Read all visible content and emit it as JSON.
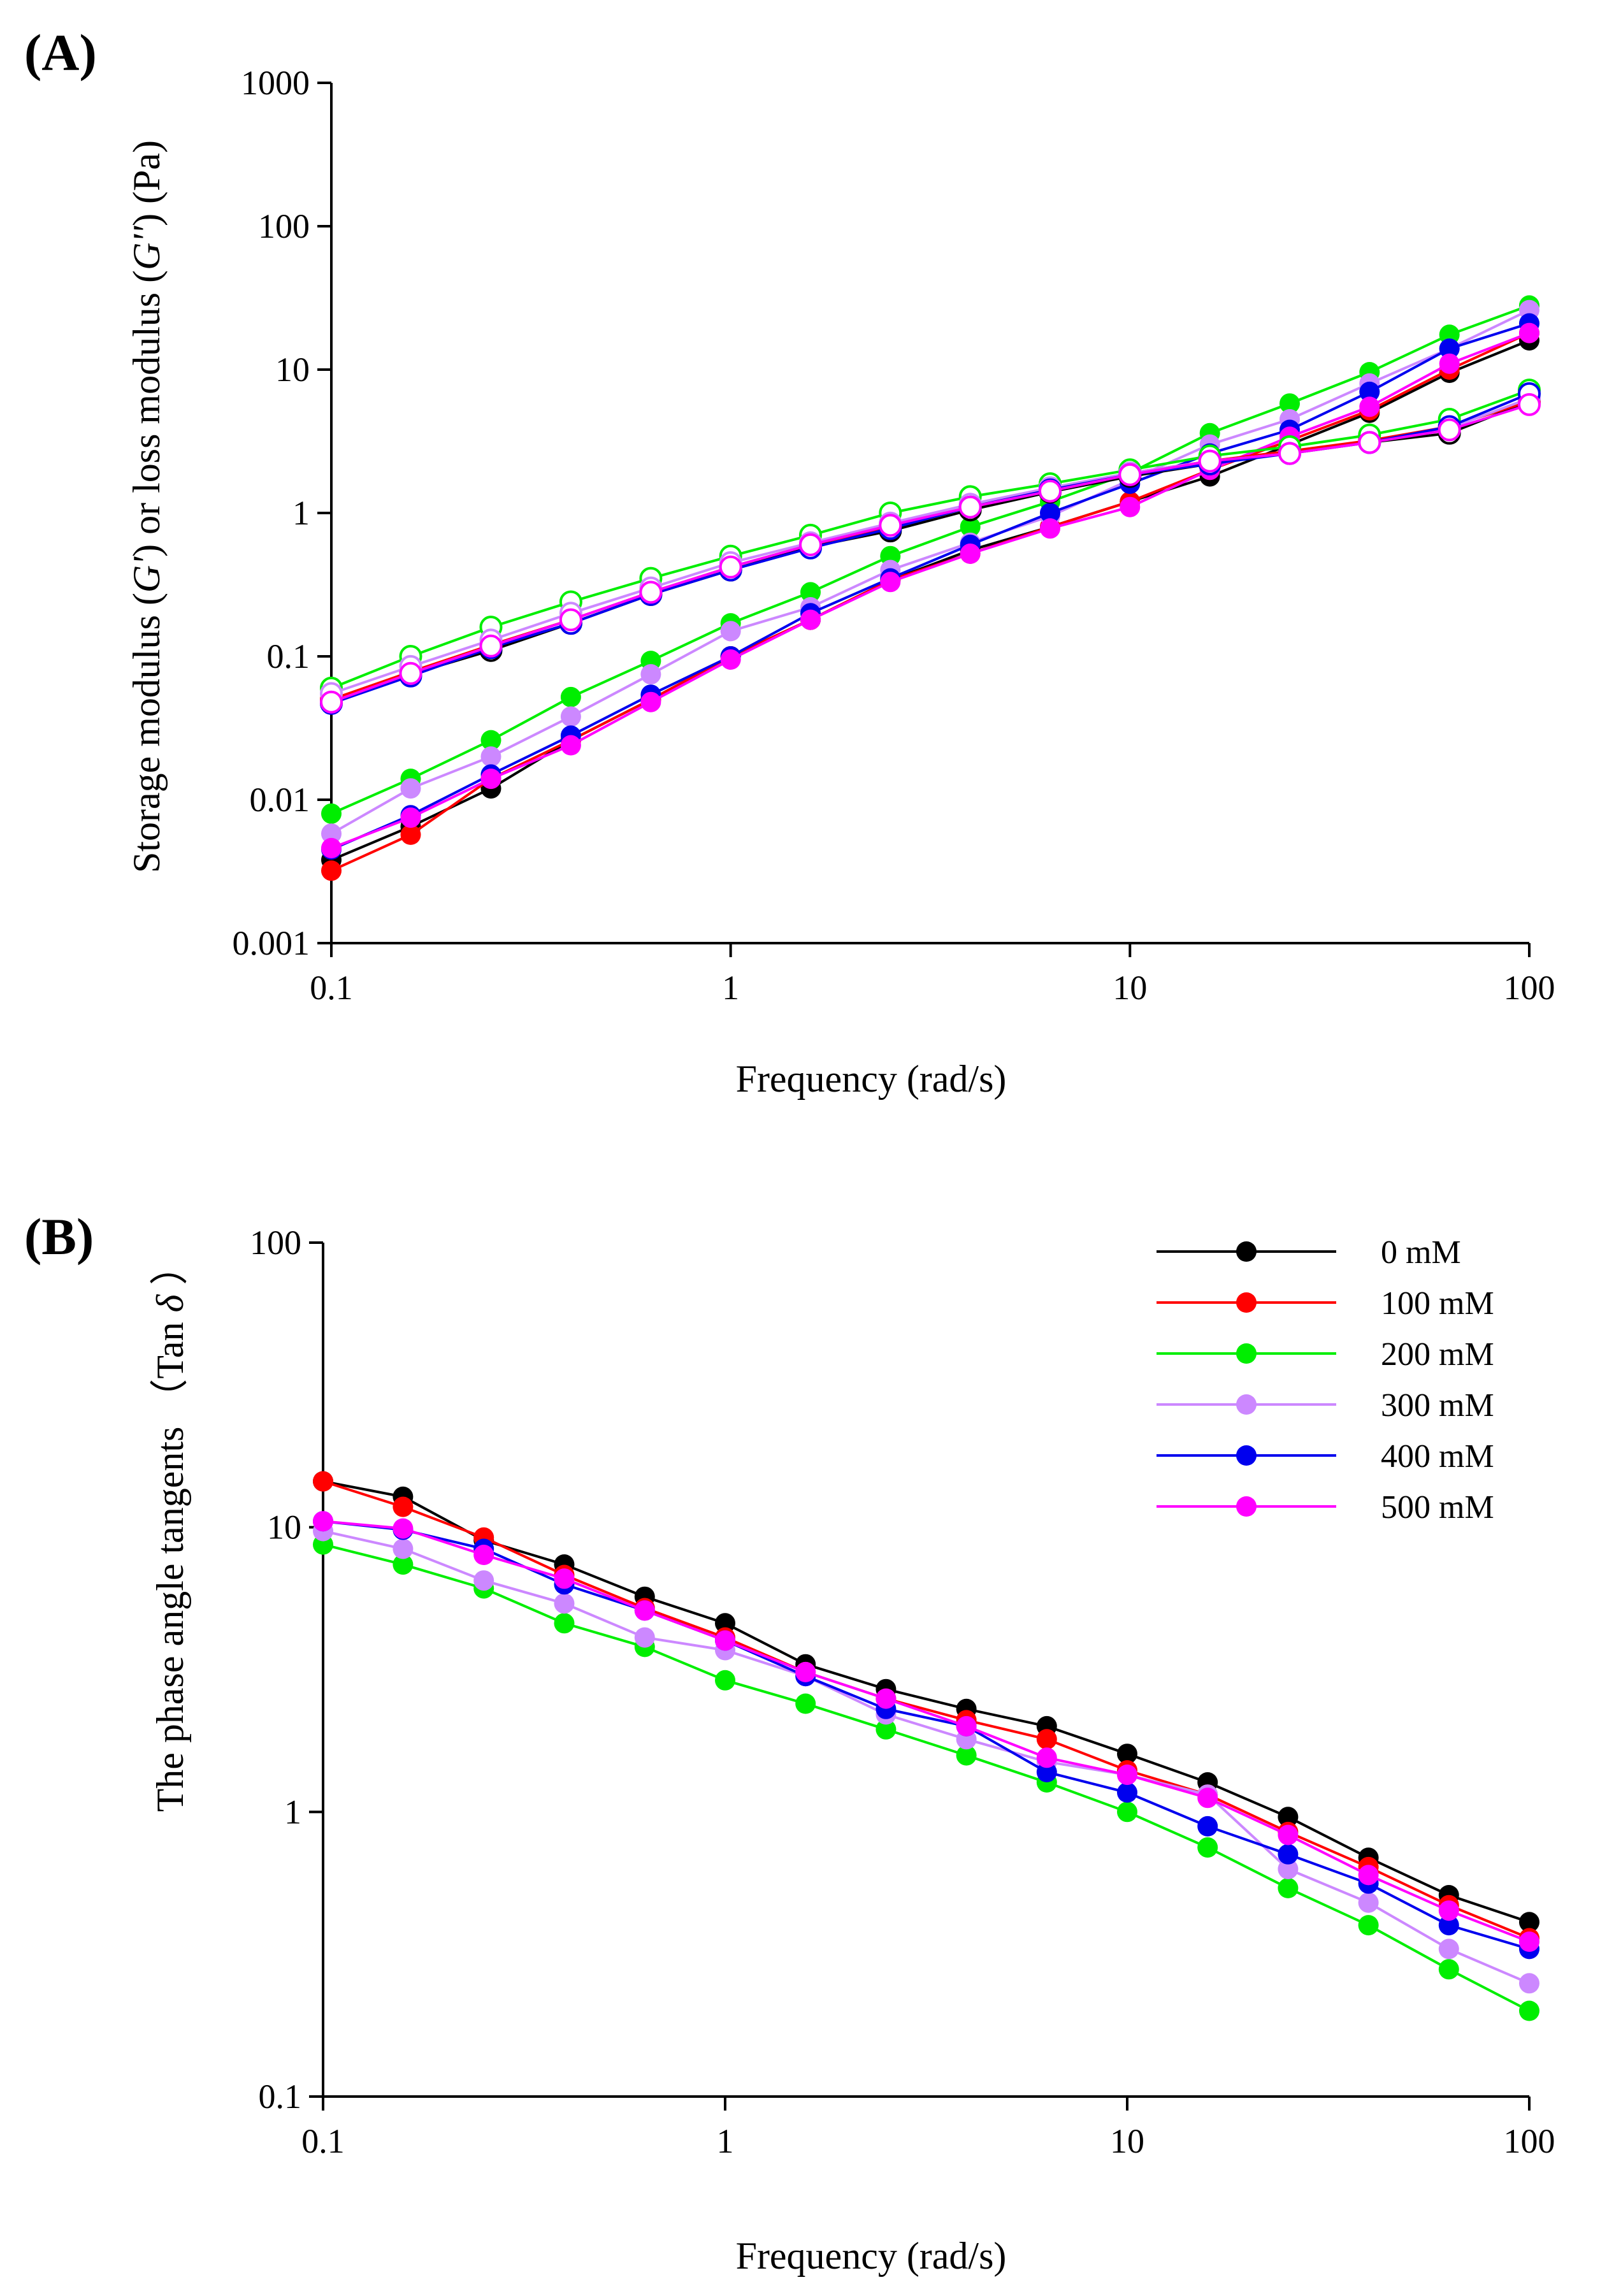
{
  "chart_data": [
    {
      "type": "line",
      "panel_label": "(A)",
      "xlabel": "Frequency (rad/s)",
      "ylabel_parts": [
        "Storage modulus (",
        "G'",
        ") or loss modulus (",
        "G''",
        ") (Pa)"
      ],
      "xscale": "log",
      "yscale": "log",
      "xlim": [
        0.1,
        100
      ],
      "ylim": [
        0.001,
        1000
      ],
      "x_ticks": [
        "0.1",
        "1",
        "10",
        "100"
      ],
      "y_ticks": [
        "0.001",
        "0.01",
        "0.1",
        "1",
        "10",
        "100",
        "1000"
      ],
      "x": [
        0.1,
        0.158,
        0.251,
        0.398,
        0.631,
        1,
        1.585,
        2.512,
        3.981,
        6.31,
        10,
        15.85,
        25.12,
        39.81,
        63.1,
        100
      ],
      "series": [
        {
          "name": "0 mM G'",
          "color": "#000000",
          "marker": "filled",
          "values": [
            0.0038,
            0.0065,
            0.012,
            0.026,
            0.05,
            0.1,
            0.18,
            0.34,
            0.55,
            0.8,
            1.2,
            1.8,
            3.0,
            5.0,
            9.5,
            16
          ]
        },
        {
          "name": "100 mM G'",
          "color": "#ff0000",
          "marker": "filled",
          "values": [
            0.0032,
            0.0057,
            0.014,
            0.026,
            0.05,
            0.1,
            0.18,
            0.34,
            0.52,
            0.8,
            1.2,
            2.0,
            3.2,
            5.2,
            10,
            18
          ]
        },
        {
          "name": "200 mM G'",
          "color": "#00ee00",
          "marker": "filled",
          "values": [
            0.008,
            0.014,
            0.026,
            0.052,
            0.093,
            0.17,
            0.28,
            0.5,
            0.8,
            1.2,
            1.9,
            3.6,
            5.8,
            9.6,
            17.5,
            28
          ]
        },
        {
          "name": "300 mM G'",
          "color": "#cc88ff",
          "marker": "filled",
          "values": [
            0.0058,
            0.012,
            0.02,
            0.038,
            0.075,
            0.15,
            0.22,
            0.4,
            0.62,
            0.95,
            1.7,
            3.0,
            4.5,
            8.0,
            14,
            26
          ]
        },
        {
          "name": "400 mM G'",
          "color": "#0000ee",
          "marker": "filled",
          "values": [
            0.0045,
            0.0078,
            0.015,
            0.028,
            0.054,
            0.1,
            0.2,
            0.35,
            0.6,
            1.0,
            1.6,
            2.6,
            3.8,
            7.0,
            14,
            21
          ]
        },
        {
          "name": "500 mM G'",
          "color": "#ff00ff",
          "marker": "filled",
          "values": [
            0.0046,
            0.0075,
            0.014,
            0.024,
            0.048,
            0.095,
            0.18,
            0.33,
            0.52,
            0.78,
            1.1,
            2.0,
            3.4,
            5.5,
            11,
            18
          ]
        },
        {
          "name": "0 mM G''",
          "color": "#000000",
          "marker": "open",
          "values": [
            0.048,
            0.075,
            0.11,
            0.17,
            0.27,
            0.4,
            0.58,
            0.75,
            1.05,
            1.4,
            1.8,
            2.2,
            2.7,
            3.1,
            3.6,
            6.0
          ]
        },
        {
          "name": "100 mM G''",
          "color": "#ff0000",
          "marker": "open",
          "values": [
            0.05,
            0.078,
            0.12,
            0.18,
            0.28,
            0.42,
            0.6,
            0.8,
            1.1,
            1.45,
            1.9,
            2.3,
            2.7,
            3.2,
            4.0,
            6.0
          ]
        },
        {
          "name": "200 mM G''",
          "color": "#00ee00",
          "marker": "open",
          "values": [
            0.06,
            0.1,
            0.16,
            0.24,
            0.35,
            0.5,
            0.7,
            1.0,
            1.3,
            1.6,
            2.0,
            2.5,
            2.9,
            3.5,
            4.5,
            7.2
          ]
        },
        {
          "name": "300 mM G''",
          "color": "#cc88ff",
          "marker": "open",
          "values": [
            0.055,
            0.085,
            0.13,
            0.2,
            0.3,
            0.45,
            0.62,
            0.85,
            1.15,
            1.5,
            1.9,
            2.3,
            2.6,
            3.1,
            3.9,
            6.3
          ]
        },
        {
          "name": "400 mM G''",
          "color": "#0000ee",
          "marker": "open",
          "values": [
            0.047,
            0.073,
            0.115,
            0.17,
            0.27,
            0.4,
            0.57,
            0.78,
            1.1,
            1.45,
            1.85,
            2.2,
            2.6,
            3.1,
            4.0,
            6.8
          ]
        },
        {
          "name": "500 mM G''",
          "color": "#ff00ff",
          "marker": "open",
          "values": [
            0.048,
            0.076,
            0.118,
            0.18,
            0.28,
            0.42,
            0.6,
            0.82,
            1.1,
            1.42,
            1.85,
            2.3,
            2.6,
            3.1,
            3.8,
            5.7
          ]
        }
      ]
    },
    {
      "type": "line",
      "panel_label": "(B)",
      "xlabel": "Frequency (rad/s)",
      "ylabel_parts": [
        "The phase angle tangents  （Tan ",
        "δ",
        " ）"
      ],
      "xscale": "log",
      "yscale": "log",
      "xlim": [
        0.1,
        100
      ],
      "ylim": [
        0.1,
        100
      ],
      "x_ticks": [
        "0.1",
        "1",
        "10",
        "100"
      ],
      "y_ticks": [
        "0.1",
        "1",
        "10",
        "100"
      ],
      "legend": "top-right",
      "x": [
        0.1,
        0.158,
        0.251,
        0.398,
        0.631,
        1,
        1.585,
        2.512,
        3.981,
        6.31,
        10,
        15.85,
        25.12,
        39.81,
        63.1,
        100
      ],
      "series": [
        {
          "name": "0 mM",
          "color": "#000000",
          "values": [
            14.5,
            12.8,
            9.0,
            7.4,
            5.7,
            4.6,
            3.3,
            2.7,
            2.3,
            2.0,
            1.6,
            1.27,
            0.96,
            0.69,
            0.51,
            0.41
          ]
        },
        {
          "name": "100 mM",
          "color": "#ff0000",
          "values": [
            14.5,
            11.8,
            9.2,
            6.8,
            5.2,
            4.1,
            3.1,
            2.5,
            2.1,
            1.8,
            1.4,
            1.15,
            0.85,
            0.64,
            0.47,
            0.36
          ]
        },
        {
          "name": "200 mM",
          "color": "#00ee00",
          "values": [
            8.7,
            7.4,
            6.1,
            4.6,
            3.8,
            2.9,
            2.4,
            1.95,
            1.58,
            1.27,
            1.0,
            0.75,
            0.54,
            0.4,
            0.28,
            0.2
          ]
        },
        {
          "name": "300 mM",
          "color": "#cc88ff",
          "values": [
            9.7,
            8.4,
            6.5,
            5.4,
            4.1,
            3.7,
            3.0,
            2.2,
            1.8,
            1.5,
            1.35,
            1.15,
            0.63,
            0.48,
            0.33,
            0.25
          ]
        },
        {
          "name": "400 mM",
          "color": "#0000ee",
          "values": [
            10.5,
            9.8,
            8.4,
            6.3,
            5.1,
            4.0,
            3.0,
            2.3,
            2.0,
            1.38,
            1.17,
            0.89,
            0.71,
            0.56,
            0.4,
            0.33
          ]
        },
        {
          "name": "500 mM",
          "color": "#ff00ff",
          "values": [
            10.5,
            9.9,
            8.0,
            6.6,
            5.1,
            4.0,
            3.1,
            2.5,
            2.0,
            1.55,
            1.35,
            1.12,
            0.83,
            0.6,
            0.45,
            0.35
          ]
        }
      ]
    }
  ]
}
